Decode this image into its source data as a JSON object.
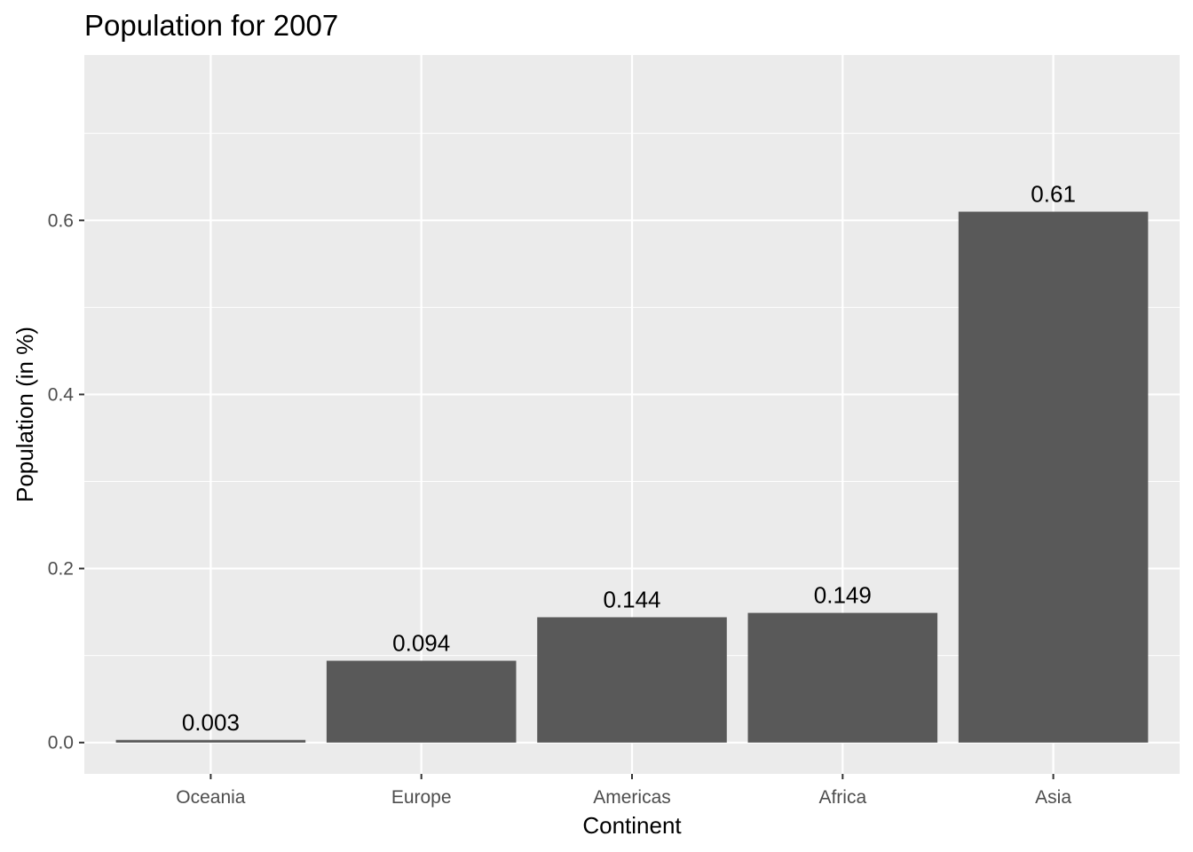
{
  "chart_data": {
    "type": "bar",
    "title": "Population for 2007",
    "xlabel": "Continent",
    "ylabel": "Population (in %)",
    "categories": [
      "Oceania",
      "Europe",
      "Americas",
      "Africa",
      "Asia"
    ],
    "values": [
      0.003,
      0.094,
      0.144,
      0.149,
      0.61
    ],
    "value_labels": [
      "0.003",
      "0.094",
      "0.144",
      "0.149",
      "0.61"
    ],
    "ylim": [
      -0.036,
      0.79
    ],
    "yticks": [
      0.0,
      0.2,
      0.4,
      0.6
    ],
    "ytick_labels": [
      "0.0",
      "0.2",
      "0.4",
      "0.6"
    ],
    "grid": true,
    "legend": "none",
    "colors": {
      "bar": "#595959",
      "panel": "#ebebeb",
      "grid": "#ffffff",
      "tick": "#333333"
    }
  }
}
